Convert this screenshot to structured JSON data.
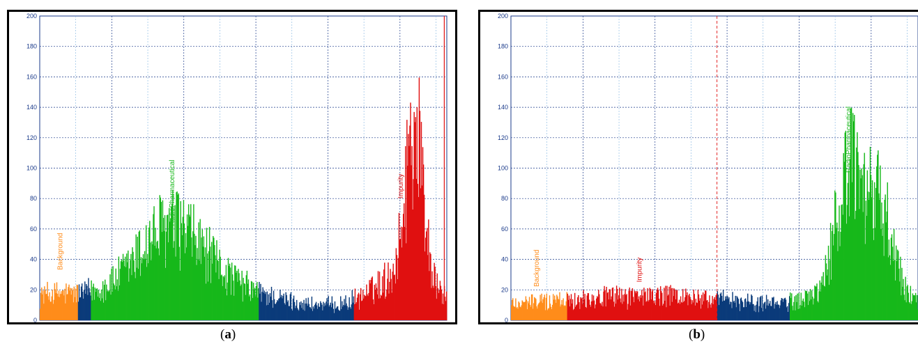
{
  "chart_data": [
    {
      "type": "bar",
      "panel_label": "a",
      "xlim": [
        0,
        113
      ],
      "ylim": [
        0,
        200
      ],
      "x_ticks": [
        0,
        20,
        40,
        60,
        80,
        100
      ],
      "y_ticks": [
        0,
        20,
        40,
        60,
        80,
        100,
        120,
        140,
        160,
        180,
        200
      ],
      "grid": true,
      "regions": [
        {
          "start": 0,
          "end": 10.7,
          "color": "#ff8c1a"
        },
        {
          "start": 10.7,
          "end": 14.3,
          "color": "#0b3b7a"
        },
        {
          "start": 14.3,
          "end": 60.8,
          "color": "#17b81a"
        },
        {
          "start": 60.8,
          "end": 87.2,
          "color": "#0b3b7a"
        },
        {
          "start": 87.2,
          "end": 113,
          "color": "#e01010"
        }
      ],
      "labels": [
        {
          "text": "Background",
          "x": 6.3,
          "y": 33,
          "color": "#ff8c1a"
        },
        {
          "text": "RadioPharmaceutical",
          "x": 37.3,
          "y": 62,
          "color": "#17b81a"
        },
        {
          "text": "Impurity",
          "x": 100.8,
          "y": 80,
          "color": "#e01010"
        }
      ],
      "peaks": [
        {
          "center": 5,
          "sigma": 20,
          "height": 9
        },
        {
          "center": 36,
          "sigma": 9,
          "height": 40
        },
        {
          "center": 48,
          "sigma": 14,
          "height": 14
        },
        {
          "center": 104,
          "sigma": 2.4,
          "height": 100
        },
        {
          "center": 101,
          "sigma": 8,
          "height": 22
        }
      ],
      "baseline": 8,
      "marker_line": {
        "x": 112.3,
        "color": "#e01010",
        "style": "solid"
      }
    },
    {
      "type": "bar",
      "panel_label": "b",
      "xlim": [
        0,
        113
      ],
      "ylim": [
        0,
        200
      ],
      "x_ticks": [
        0,
        20,
        40,
        60,
        80,
        100
      ],
      "y_ticks": [
        0,
        20,
        40,
        60,
        80,
        100,
        120,
        140,
        160,
        180,
        200
      ],
      "grid": true,
      "regions": [
        {
          "start": 0,
          "end": 15.7,
          "color": "#ff8c1a"
        },
        {
          "start": 15.7,
          "end": 57.2,
          "color": "#e01010"
        },
        {
          "start": 57.2,
          "end": 77.5,
          "color": "#0b3b7a"
        },
        {
          "start": 77.5,
          "end": 113,
          "color": "#17b81a"
        }
      ],
      "labels": [
        {
          "text": "Background",
          "x": 7.7,
          "y": 22,
          "color": "#ff8c1a"
        },
        {
          "text": "Impurity",
          "x": 36.3,
          "y": 25,
          "color": "#e01010"
        },
        {
          "text": "RadioPharmaceutical",
          "x": 94.3,
          "y": 97,
          "color": "#17b81a"
        }
      ],
      "peaks": [
        {
          "center": 36,
          "sigma": 22,
          "height": 7
        },
        {
          "center": 93.5,
          "sigma": 3.2,
          "height": 70
        },
        {
          "center": 102,
          "sigma": 3.5,
          "height": 52
        },
        {
          "center": 97,
          "sigma": 9,
          "height": 18
        }
      ],
      "baseline": 9,
      "marker_line": {
        "x": 57.2,
        "color": "#e01010",
        "style": "dashed"
      }
    }
  ],
  "captions": {
    "a": "a",
    "b": "b"
  }
}
